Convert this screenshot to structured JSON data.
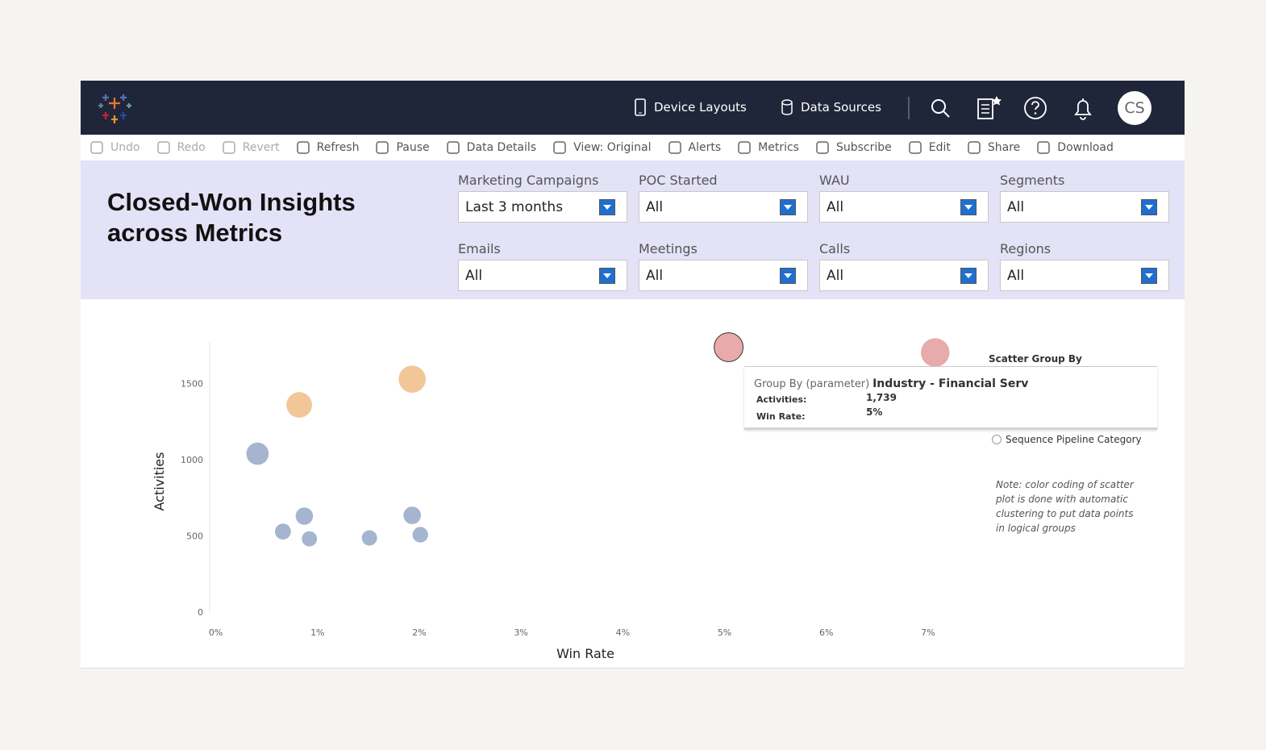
{
  "header": {
    "nav": [
      "Device Layouts",
      "Data Sources"
    ],
    "avatar": "CS"
  },
  "toolbar": [
    {
      "label": "Undo",
      "disabled": true
    },
    {
      "label": "Redo",
      "disabled": true
    },
    {
      "label": "Revert",
      "disabled": true
    },
    {
      "label": "Refresh",
      "disabled": false
    },
    {
      "label": "Pause",
      "disabled": false
    },
    {
      "label": "Data Details",
      "disabled": false
    },
    {
      "label": "View: Original",
      "disabled": false
    },
    {
      "label": "Alerts",
      "disabled": false
    },
    {
      "label": "Metrics",
      "disabled": false
    },
    {
      "label": "Subscribe",
      "disabled": false
    },
    {
      "label": "Edit",
      "disabled": false
    },
    {
      "label": "Share",
      "disabled": false
    },
    {
      "label": "Download",
      "disabled": false
    }
  ],
  "dashboard": {
    "title": "Closed-Won Insights across Metrics",
    "filters": [
      {
        "label": "Marketing Campaigns",
        "value": "Last 3 months"
      },
      {
        "label": "POC Started",
        "value": "All"
      },
      {
        "label": "WAU",
        "value": "All"
      },
      {
        "label": "Segments",
        "value": "All"
      },
      {
        "label": "Emails",
        "value": "All"
      },
      {
        "label": "Meetings",
        "value": "All"
      },
      {
        "label": "Calls",
        "value": "All"
      },
      {
        "label": "Regions",
        "value": "All"
      }
    ]
  },
  "chart_data": {
    "type": "scatter",
    "x_label": "Win Rate",
    "y_label": "Activities",
    "x": [
      0.41,
      0.66,
      0.87,
      0.92,
      1.51,
      1.93,
      2.01,
      0.82,
      1.93,
      5.04,
      7.07
    ],
    "values": [
      1040,
      529,
      630,
      481,
      487,
      635,
      508,
      1360,
      1529,
      1739,
      1704
    ],
    "colors": [
      "#a5b5cf",
      "#a5b5cf",
      "#a5b5cf",
      "#a5b5cf",
      "#a5b5cf",
      "#a5b5cf",
      "#a5b5cf",
      "#f2c797",
      "#f2c797",
      "#e8aaaa",
      "#e8aaaa"
    ],
    "selected": 9,
    "xlim": [
      -0.1,
      7.5
    ],
    "xticks": [
      {
        "value": 0,
        "label": "0%"
      },
      {
        "value": 1,
        "label": "1%"
      },
      {
        "value": 2,
        "label": "2%"
      },
      {
        "value": 3,
        "label": "3%"
      },
      {
        "value": 4,
        "label": "4%"
      },
      {
        "value": 5,
        "label": "5%"
      },
      {
        "value": 6,
        "label": "6%"
      },
      {
        "value": 7,
        "label": "7%"
      }
    ],
    "ylim": [
      0,
      1800
    ],
    "yticks": [
      0,
      500,
      1000,
      1500
    ],
    "tooltip": {
      "label": "Group By (parameter)",
      "group": "Industry - Financial Serv",
      "rows": [
        {
          "label": "Activities:",
          "value": "1,739"
        },
        {
          "label": "Win Rate:",
          "value": "5%"
        }
      ]
    },
    "legend": {
      "title": "Scatter Group By",
      "option": "Sequence Pipeline Category"
    },
    "note": "Note: color coding of scatter plot is done with automatic clustering to put data points in logical groups"
  }
}
